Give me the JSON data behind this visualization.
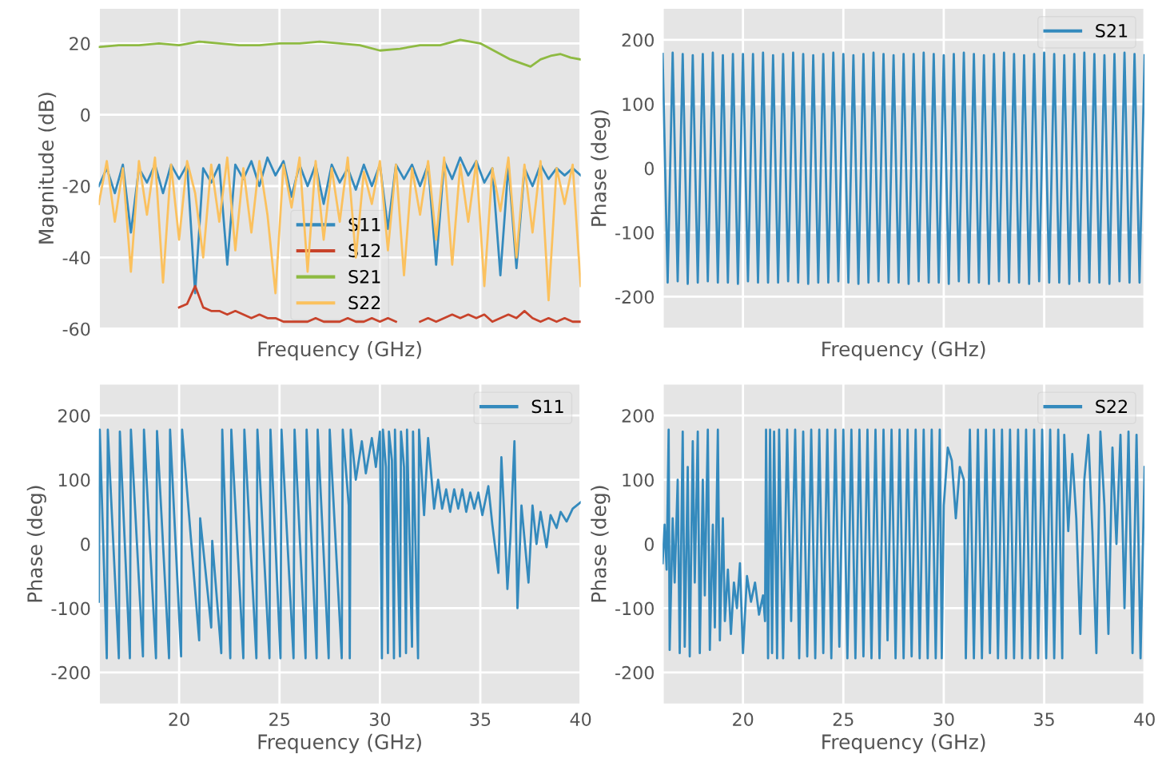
{
  "chart_data": [
    {
      "type": "line",
      "xlabel": "Frequency (GHz)",
      "ylabel": "Magnitude (dB)",
      "xlim": [
        16,
        40
      ],
      "xticks": [
        20,
        25,
        30,
        35,
        40
      ],
      "ylim": [
        -60,
        30
      ],
      "yticks": [
        -60,
        -40,
        -20,
        0,
        20
      ],
      "tick_labels": "y",
      "grid": true,
      "legend": "bottom",
      "series": [
        {
          "name": "S11",
          "color": "#348abd",
          "x": [
            16.0,
            16.4,
            16.8,
            17.2,
            17.6,
            18.0,
            18.4,
            18.8,
            19.2,
            19.6,
            20.0,
            20.4,
            20.8,
            21.2,
            21.6,
            22.0,
            22.4,
            22.8,
            23.2,
            23.6,
            24.0,
            24.4,
            24.8,
            25.2,
            25.6,
            26.0,
            26.4,
            26.8,
            27.2,
            27.6,
            28.0,
            28.4,
            28.8,
            29.2,
            29.6,
            30.0,
            30.4,
            30.8,
            31.2,
            31.6,
            32.0,
            32.4,
            32.8,
            33.2,
            33.6,
            34.0,
            34.4,
            34.8,
            35.2,
            35.6,
            36.0,
            36.4,
            36.8,
            37.2,
            37.6,
            38.0,
            38.4,
            38.8,
            39.2,
            39.6,
            40.0
          ],
          "values": [
            -20,
            -15,
            -22,
            -14,
            -33,
            -15,
            -19,
            -14,
            -22,
            -14,
            -18,
            -14,
            -50,
            -15,
            -19,
            -14,
            -42,
            -14,
            -18,
            -13,
            -20,
            -12,
            -17,
            -13,
            -23,
            -14,
            -20,
            -14,
            -25,
            -14,
            -19,
            -15,
            -21,
            -14,
            -20,
            -14,
            -32,
            -14,
            -18,
            -14,
            -20,
            -14,
            -42,
            -13,
            -18,
            -12,
            -17,
            -13,
            -19,
            -15,
            -45,
            -14,
            -43,
            -15,
            -20,
            -14,
            -18,
            -15,
            -17,
            -15,
            -17
          ]
        },
        {
          "name": "S12",
          "color": "#c8432b",
          "x": [
            20.0,
            20.4,
            20.8,
            21.2,
            21.6,
            22.0,
            22.4,
            22.8,
            23.2,
            23.6,
            24.0,
            24.4,
            24.8,
            25.2,
            25.6,
            26.0,
            26.4,
            26.8,
            27.2,
            27.6,
            28.0,
            28.4,
            28.8,
            29.2,
            29.6,
            30.0,
            30.4,
            30.8,
            31.2,
            31.6,
            32.0,
            32.4,
            32.8,
            33.2,
            33.6,
            34.0,
            34.4,
            34.8,
            35.2,
            35.6,
            36.0,
            36.4,
            36.8,
            37.2,
            37.6,
            38.0,
            38.4,
            38.8,
            39.2,
            39.6,
            40.0
          ],
          "values": [
            -54,
            -53,
            -48,
            -54,
            -55,
            -55,
            -56,
            -55,
            -56,
            -57,
            -56,
            -57,
            -57,
            -58,
            -58,
            -58,
            -58,
            -57,
            -58,
            -58,
            -58,
            -57,
            -58,
            -58,
            -57,
            -58,
            -57,
            -58,
            null,
            null,
            -58,
            -57,
            -58,
            -57,
            -56,
            -57,
            -56,
            -57,
            -56,
            -58,
            -57,
            -56,
            -57,
            -55,
            -57,
            -58,
            -57,
            -58,
            -57,
            -58,
            -58
          ]
        },
        {
          "name": "S21",
          "color": "#8eba42",
          "x": [
            16,
            17,
            18,
            19,
            20,
            21,
            22,
            23,
            24,
            25,
            26,
            27,
            28,
            29,
            30,
            31,
            32,
            33,
            34,
            35,
            35.5,
            36,
            36.5,
            37,
            37.5,
            38,
            38.5,
            39,
            39.5,
            40
          ],
          "values": [
            19,
            19.5,
            19.5,
            20,
            19.5,
            20.5,
            20,
            19.5,
            19.5,
            20,
            20,
            20.5,
            20,
            19.5,
            18,
            18.5,
            19.5,
            19.5,
            21,
            20,
            18.5,
            17,
            15.5,
            14.5,
            13.5,
            15.5,
            16.5,
            17,
            16,
            15.5
          ]
        },
        {
          "name": "S22",
          "color": "#fbc15e",
          "x": [
            16.0,
            16.4,
            16.8,
            17.2,
            17.6,
            18.0,
            18.4,
            18.8,
            19.2,
            19.6,
            20.0,
            20.4,
            20.8,
            21.2,
            21.6,
            22.0,
            22.4,
            22.8,
            23.2,
            23.6,
            24.0,
            24.4,
            24.8,
            25.2,
            25.6,
            26.0,
            26.4,
            26.8,
            27.2,
            27.6,
            28.0,
            28.4,
            28.8,
            29.2,
            29.6,
            30.0,
            30.4,
            30.8,
            31.2,
            31.6,
            32.0,
            32.4,
            32.8,
            33.2,
            33.6,
            34.0,
            34.4,
            34.8,
            35.2,
            35.6,
            36.0,
            36.4,
            36.8,
            37.2,
            37.6,
            38.0,
            38.4,
            38.8,
            39.2,
            39.6,
            40.0
          ],
          "values": [
            -25,
            -13,
            -30,
            -15,
            -44,
            -13,
            -28,
            -12,
            -47,
            -14,
            -35,
            -13,
            -22,
            -40,
            -14,
            -30,
            -12,
            -38,
            -15,
            -33,
            -13,
            -28,
            -50,
            -14,
            -26,
            -12,
            -44,
            -13,
            -35,
            -15,
            -30,
            -12,
            -40,
            -16,
            -25,
            -13,
            -38,
            -14,
            -45,
            -15,
            -28,
            -13,
            -35,
            -12,
            -42,
            -14,
            -30,
            -13,
            -48,
            -15,
            -27,
            -12,
            -40,
            -14,
            -33,
            -13,
            -52,
            -15,
            -25,
            -14,
            -48
          ]
        }
      ]
    },
    {
      "type": "line",
      "xlabel": "Frequency (GHz)",
      "ylabel": "Phase (deg)",
      "xlim": [
        16,
        40
      ],
      "xticks": [
        20,
        25,
        30,
        35,
        40
      ],
      "ylim": [
        -250,
        250
      ],
      "yticks": [
        -200,
        -100,
        0,
        100,
        200
      ],
      "tick_labels": "y",
      "grid": true,
      "legend": "top right",
      "series": [
        {
          "name": "S21",
          "color": "#348abd",
          "x": [
            16,
            16.25,
            16.5,
            16.75,
            17,
            17.25,
            17.5,
            17.75,
            18,
            18.25,
            18.5,
            18.75,
            19,
            19.25,
            19.5,
            19.75,
            20,
            20.25,
            20.5,
            20.75,
            21,
            21.25,
            21.5,
            21.75,
            22,
            22.25,
            22.5,
            22.75,
            23,
            23.25,
            23.5,
            23.75,
            24,
            24.25,
            24.5,
            24.75,
            25,
            25.25,
            25.5,
            25.75,
            26,
            26.25,
            26.5,
            26.75,
            27,
            27.25,
            27.5,
            27.75,
            28,
            28.25,
            28.5,
            28.75,
            29,
            29.25,
            29.5,
            29.75,
            30,
            30.25,
            30.5,
            30.75,
            31,
            31.25,
            31.5,
            31.75,
            32,
            32.25,
            32.5,
            32.75,
            33,
            33.25,
            33.5,
            33.75,
            34,
            34.25,
            34.5,
            34.75,
            35,
            35.25,
            35.5,
            35.75,
            36,
            36.25,
            36.5,
            36.75,
            37,
            37.25,
            37.5,
            37.75,
            38,
            38.25,
            38.5,
            38.75,
            39,
            39.25,
            39.5,
            39.75,
            40
          ],
          "values": [
            178,
            -178,
            180,
            -176,
            178,
            -180,
            176,
            -178,
            178,
            -176,
            180,
            -178,
            176,
            -178,
            178,
            -180,
            178,
            -176,
            178,
            -178,
            180,
            -178,
            176,
            -178,
            178,
            -176,
            180,
            -178,
            178,
            -180,
            176,
            -178,
            178,
            -178,
            180,
            -176,
            178,
            -178,
            176,
            -180,
            178,
            -178,
            180,
            -176,
            178,
            -178,
            176,
            -178,
            178,
            -180,
            178,
            -176,
            180,
            -178,
            178,
            -178,
            176,
            -180,
            178,
            -176,
            180,
            -178,
            178,
            -178,
            176,
            -180,
            178,
            -176,
            180,
            -178,
            178,
            -178,
            176,
            -180,
            178,
            -176,
            180,
            -178,
            178,
            -178,
            176,
            -180,
            178,
            -176,
            180,
            -178,
            178,
            -178,
            176,
            -180,
            178,
            -176,
            180,
            -178,
            178,
            -178,
            176
          ]
        }
      ]
    },
    {
      "type": "line",
      "xlabel": "Frequency (GHz)",
      "ylabel": "Phase (deg)",
      "xlim": [
        16,
        40
      ],
      "xticks": [
        20,
        25,
        30,
        35,
        40
      ],
      "ylim": [
        -250,
        250
      ],
      "yticks": [
        -200,
        -100,
        0,
        100,
        200
      ],
      "grid": true,
      "legend": "top right",
      "series": [
        {
          "name": "S11",
          "color": "#348abd",
          "x": [
            16.0,
            16.05,
            16.4,
            16.45,
            17.0,
            17.05,
            17.55,
            17.6,
            18.2,
            18.25,
            18.85,
            18.9,
            19.5,
            19.55,
            20.1,
            20.15,
            21.0,
            21.05,
            21.6,
            21.65,
            22.1,
            22.15,
            22.55,
            22.6,
            23.2,
            23.25,
            23.85,
            23.9,
            24.5,
            24.55,
            25.05,
            25.1,
            25.7,
            25.75,
            26.3,
            26.35,
            26.85,
            26.9,
            27.45,
            27.5,
            28.1,
            28.15,
            28.45,
            28.5,
            28.55,
            28.8,
            29.1,
            29.3,
            29.6,
            29.8,
            30.0,
            30.1,
            30.15,
            30.3,
            30.4,
            30.45,
            30.6,
            30.7,
            30.75,
            31.0,
            31.05,
            31.2,
            31.3,
            31.35,
            31.6,
            31.65,
            31.9,
            31.95,
            32.2,
            32.4,
            32.7,
            32.9,
            33.1,
            33.3,
            33.5,
            33.7,
            33.9,
            34.1,
            34.3,
            34.5,
            34.7,
            34.9,
            35.1,
            35.4,
            35.6,
            35.9,
            36.05,
            36.2,
            36.35,
            36.5,
            36.7,
            36.85,
            37.05,
            37.4,
            37.6,
            37.8,
            38.0,
            38.3,
            38.5,
            38.8,
            39.0,
            39.3,
            39.6,
            40.0
          ],
          "values": [
            -90,
            178,
            -178,
            178,
            -178,
            175,
            -178,
            178,
            -175,
            178,
            -178,
            176,
            -178,
            178,
            -175,
            178,
            -150,
            40,
            -130,
            5,
            -170,
            178,
            -178,
            178,
            -178,
            178,
            -178,
            178,
            -178,
            178,
            -178,
            178,
            -178,
            178,
            -178,
            178,
            -178,
            178,
            -178,
            178,
            -178,
            178,
            60,
            -178,
            178,
            100,
            160,
            110,
            165,
            120,
            175,
            -178,
            178,
            120,
            -170,
            175,
            130,
            -178,
            178,
            -175,
            175,
            120,
            -170,
            178,
            -160,
            175,
            -178,
            178,
            45,
            165,
            55,
            100,
            55,
            85,
            50,
            85,
            55,
            85,
            50,
            80,
            55,
            80,
            45,
            90,
            30,
            -45,
            135,
            40,
            -70,
            10,
            160,
            -100,
            60,
            -60,
            60,
            0,
            50,
            -5,
            45,
            25,
            50,
            35,
            55,
            65
          ]
        }
      ]
    },
    {
      "type": "line",
      "xlabel": "Frequency (GHz)",
      "ylabel": "Phase (deg)",
      "xlim": [
        16,
        40
      ],
      "xticks": [
        20,
        25,
        30,
        35,
        40
      ],
      "ylim": [
        -250,
        250
      ],
      "yticks": [
        -200,
        -100,
        0,
        100,
        200
      ],
      "grid": true,
      "legend": "top right",
      "series": [
        {
          "name": "S22",
          "color": "#348abd",
          "x": [
            16.0,
            16.1,
            16.2,
            16.3,
            16.35,
            16.5,
            16.6,
            16.75,
            16.85,
            17.0,
            17.1,
            17.25,
            17.35,
            17.5,
            17.6,
            17.75,
            17.85,
            18.0,
            18.1,
            18.25,
            18.35,
            18.5,
            18.6,
            18.75,
            18.85,
            19.0,
            19.1,
            19.25,
            19.4,
            19.55,
            19.7,
            19.85,
            20.0,
            20.2,
            20.4,
            20.6,
            20.8,
            21.0,
            21.1,
            21.15,
            21.25,
            21.35,
            21.45,
            21.55,
            21.7,
            21.8,
            22.0,
            22.2,
            22.4,
            22.6,
            22.8,
            23.0,
            23.2,
            23.4,
            23.6,
            23.8,
            24.0,
            24.2,
            24.4,
            24.6,
            24.8,
            25.0,
            25.2,
            25.4,
            25.6,
            25.8,
            26.0,
            26.2,
            26.4,
            26.6,
            26.8,
            27.0,
            27.2,
            27.4,
            27.6,
            27.8,
            28.0,
            28.2,
            28.4,
            28.6,
            28.8,
            29.0,
            29.2,
            29.4,
            29.6,
            29.8,
            29.9,
            30.0,
            30.2,
            30.4,
            30.6,
            30.8,
            31.0,
            31.1,
            31.3,
            31.5,
            31.7,
            31.9,
            32.1,
            32.3,
            32.5,
            32.7,
            32.9,
            33.1,
            33.3,
            33.5,
            33.7,
            33.9,
            34.1,
            34.3,
            34.5,
            34.7,
            34.9,
            35.1,
            35.3,
            35.5,
            35.7,
            35.9,
            36.0,
            36.2,
            36.4,
            36.6,
            36.8,
            37.0,
            37.2,
            37.4,
            37.6,
            37.8,
            38.0,
            38.2,
            38.4,
            38.6,
            38.8,
            39.0,
            39.2,
            39.4,
            39.6,
            39.8,
            40.0
          ],
          "values": [
            -30,
            30,
            -40,
            178,
            -165,
            40,
            -60,
            100,
            -170,
            175,
            -160,
            120,
            -175,
            160,
            -60,
            175,
            -170,
            100,
            -80,
            178,
            -165,
            30,
            -130,
            178,
            -150,
            40,
            -120,
            -40,
            -140,
            -60,
            -100,
            -30,
            -170,
            -50,
            -90,
            -60,
            -110,
            -80,
            -120,
            178,
            -178,
            178,
            -170,
            175,
            -178,
            178,
            -178,
            178,
            -120,
            178,
            -178,
            175,
            -175,
            178,
            -178,
            178,
            -170,
            178,
            -178,
            178,
            -160,
            178,
            -178,
            178,
            -178,
            178,
            -175,
            178,
            -178,
            178,
            -178,
            178,
            -150,
            178,
            -178,
            178,
            -178,
            178,
            -175,
            178,
            -178,
            178,
            -178,
            178,
            -178,
            178,
            -178,
            60,
            150,
            130,
            40,
            120,
            100,
            -178,
            178,
            -178,
            178,
            -178,
            178,
            -170,
            178,
            -178,
            178,
            -178,
            178,
            -178,
            178,
            -178,
            178,
            -178,
            178,
            -178,
            178,
            -178,
            178,
            -178,
            178,
            -178,
            170,
            20,
            140,
            40,
            -140,
            100,
            170,
            20,
            -170,
            175,
            60,
            -140,
            150,
            0,
            170,
            -100,
            175,
            -170,
            170,
            -178,
            120
          ]
        }
      ]
    }
  ]
}
